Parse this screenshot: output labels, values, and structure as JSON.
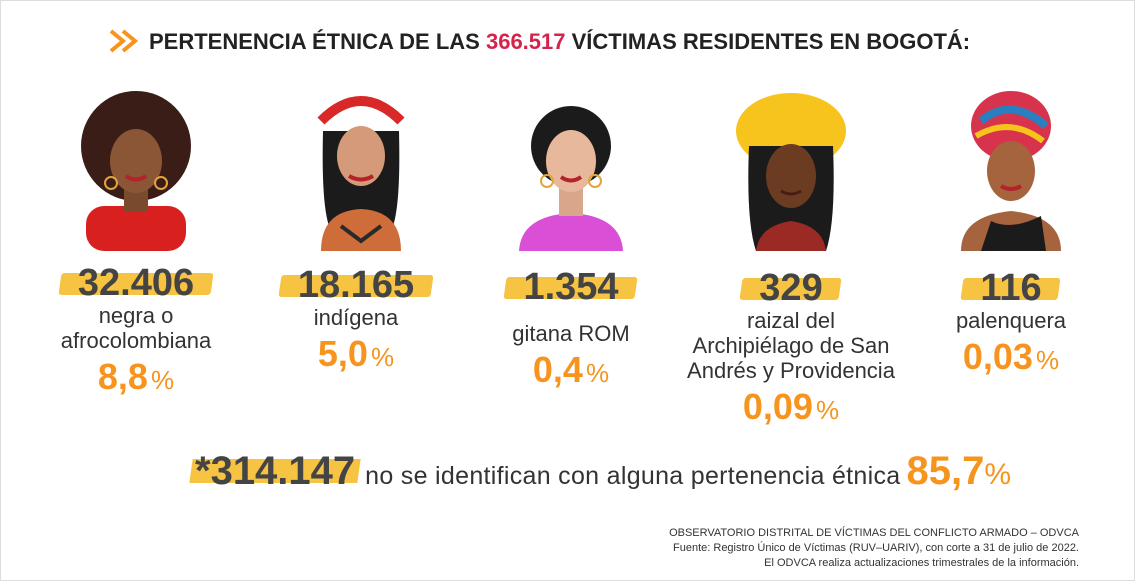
{
  "header": {
    "title_before": "PERTENENCIA ÉTNICA DE LAS",
    "title_number": "366.517",
    "title_after": "VÍCTIMAS RESIDENTES EN BOGOTÁ:"
  },
  "groups": [
    {
      "number": "32.406",
      "label": [
        "negra o",
        "afrocolombiana"
      ],
      "percent": "8,8",
      "unit": "%"
    },
    {
      "number": "18.165",
      "label": [
        "indígena"
      ],
      "percent": "5,0",
      "unit": "%"
    },
    {
      "number": "1.354",
      "label": [
        "gitana ROM"
      ],
      "percent": "0,4",
      "unit": "%"
    },
    {
      "number": "329",
      "label": [
        "raizal del",
        "Archipiélago de San",
        "Andrés y Providencia"
      ],
      "percent": "0,09",
      "unit": "%"
    },
    {
      "number": "116",
      "label": [
        "palenquera"
      ],
      "percent": "0,03",
      "unit": "%"
    }
  ],
  "summary": {
    "number": "*314.147",
    "text": "no se identifican con alguna pertenencia étnica",
    "percent": "85,7",
    "unit": "%"
  },
  "source": [
    "OBSERVATORIO DISTRITAL DE VÍCTIMAS DEL CONFLICTO ARMADO – ODVCA",
    "Fuente: Registro Único de Víctimas (RUV–UARIV), con corte a 31 de julio de 2022.",
    "El ODVCA realiza actualizaciones trimestrales de la información."
  ]
}
